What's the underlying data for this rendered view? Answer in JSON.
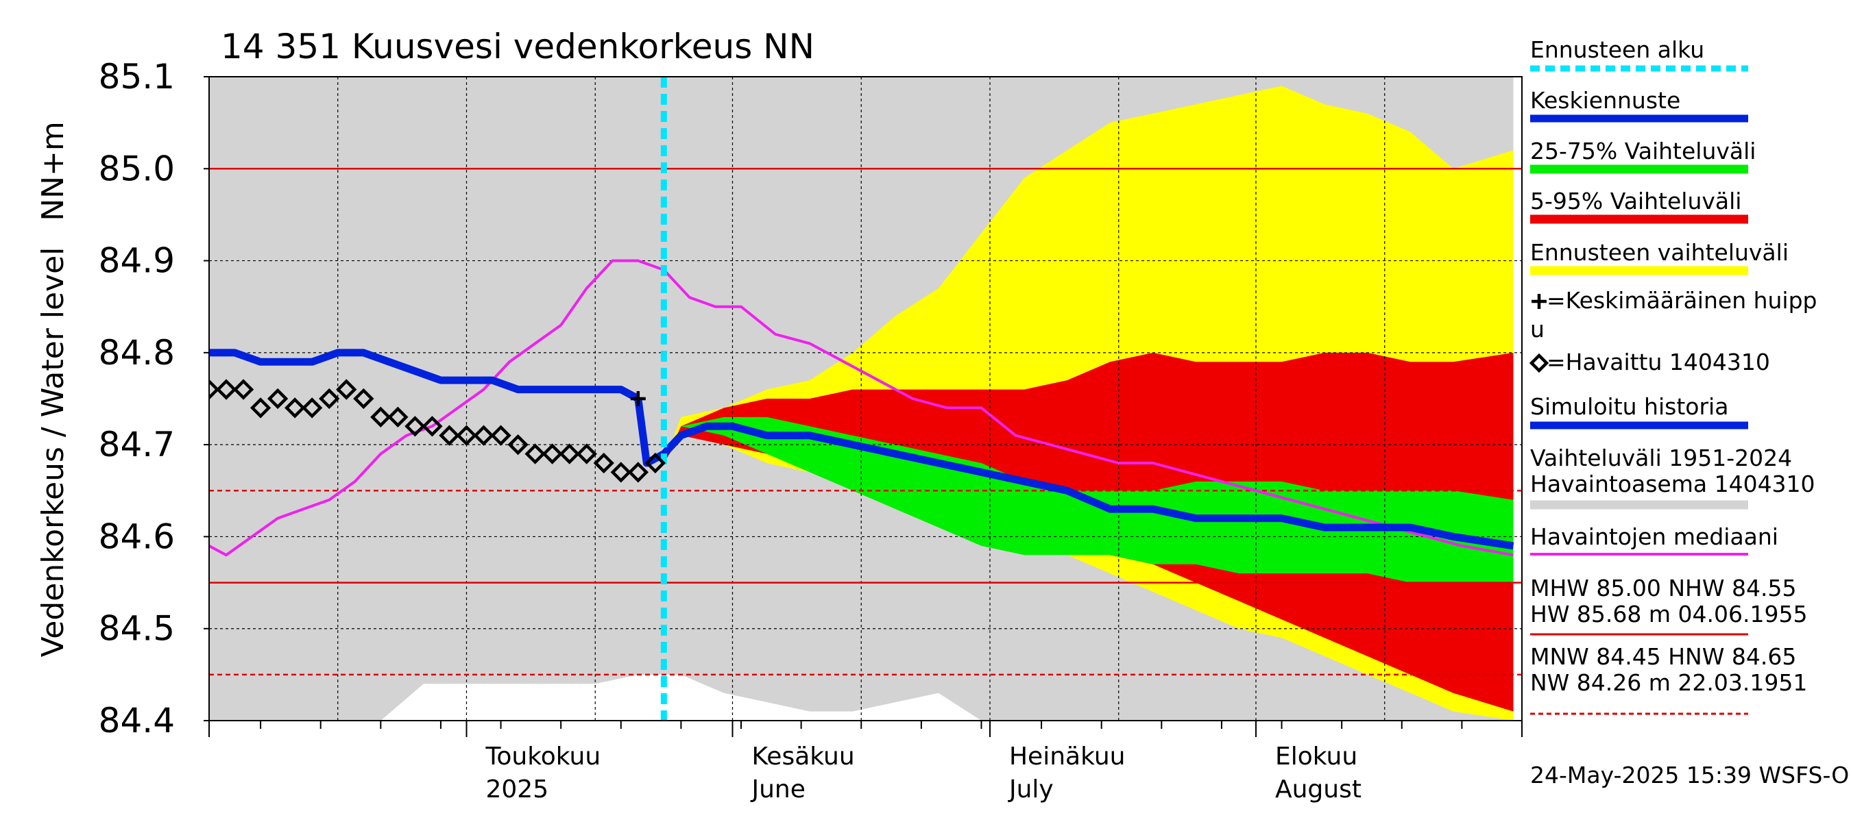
{
  "chart_data": {
    "type": "line",
    "title": "14 351 Kuusvesi vedenkorkeus NN",
    "ylabel": "Vedenkorkeus / Water level",
    "yunit": "NN+m",
    "ylim": [
      84.4,
      85.1
    ],
    "yticks": [
      "84.4",
      "84.5",
      "84.6",
      "84.7",
      "84.8",
      "84.9",
      "85.0",
      "85.1"
    ],
    "xlim": [
      "2025-04-01",
      "2025-08-31"
    ],
    "grid": true,
    "legend_position": "right",
    "month_labels": [
      {
        "date": "2025-05-01",
        "line1": "Toukokuu",
        "line2": "2025"
      },
      {
        "date": "2025-06-01",
        "line1": "Kesäkuu",
        "line2": "June"
      },
      {
        "date": "2025-07-01",
        "line1": "Heinäkuu",
        "line2": "July"
      },
      {
        "date": "2025-08-01",
        "line1": "Elokuu",
        "line2": "August"
      }
    ],
    "forecast_start": "2025-05-24",
    "reference_lines": [
      {
        "name": "MHW",
        "value": 85.0,
        "style": "solid"
      },
      {
        "name": "NHW",
        "value": 84.55,
        "style": "solid"
      },
      {
        "name": "HNW",
        "value": 84.65,
        "style": "dashed"
      },
      {
        "name": "MNW",
        "value": 84.45,
        "style": "dashed"
      }
    ],
    "colors": {
      "forecast_start": "#00e5ff",
      "mean_forecast": "#0022dd",
      "band_25_75": "#00ee00",
      "band_5_95": "#ee0000",
      "forecast_range": "#ffff00",
      "history_range": "#d3d3d3",
      "median": "#ee22ee",
      "observed": "#000000",
      "ref_lines": "#dd0000"
    },
    "history_range": {
      "x": [
        "2025-04-01",
        "2025-04-06",
        "2025-04-11",
        "2025-04-16",
        "2025-04-21",
        "2025-04-26",
        "2025-05-01",
        "2025-05-06",
        "2025-05-11",
        "2025-05-16",
        "2025-05-21",
        "2025-05-26",
        "2025-05-31",
        "2025-06-05",
        "2025-06-10",
        "2025-06-15",
        "2025-06-20",
        "2025-06-25",
        "2025-06-30",
        "2025-07-05",
        "2025-07-10",
        "2025-07-15",
        "2025-07-20",
        "2025-07-25",
        "2025-07-30",
        "2025-08-04",
        "2025-08-09",
        "2025-08-14",
        "2025-08-19",
        "2025-08-24",
        "2025-08-31"
      ],
      "upper": [
        85.1,
        85.1,
        85.1,
        85.1,
        85.1,
        85.1,
        85.1,
        85.1,
        85.1,
        85.1,
        85.1,
        85.1,
        85.1,
        85.1,
        85.1,
        85.1,
        85.1,
        85.1,
        85.1,
        85.1,
        85.1,
        85.1,
        85.1,
        85.1,
        85.1,
        85.1,
        85.1,
        85.1,
        85.1,
        85.1,
        85.1
      ],
      "lower": [
        84.4,
        84.4,
        84.4,
        84.4,
        84.4,
        84.44,
        84.44,
        84.44,
        84.44,
        84.44,
        84.45,
        84.45,
        84.43,
        84.42,
        84.41,
        84.41,
        84.42,
        84.43,
        84.4,
        84.4,
        84.4,
        84.4,
        84.4,
        84.4,
        84.4,
        84.4,
        84.4,
        84.4,
        84.4,
        84.4,
        84.4
      ]
    },
    "forecast_range": {
      "x": [
        "2025-05-24",
        "2025-05-26",
        "2025-05-31",
        "2025-06-05",
        "2025-06-10",
        "2025-06-15",
        "2025-06-20",
        "2025-06-25",
        "2025-06-30",
        "2025-07-05",
        "2025-07-10",
        "2025-07-15",
        "2025-07-20",
        "2025-07-25",
        "2025-07-30",
        "2025-08-04",
        "2025-08-09",
        "2025-08-14",
        "2025-08-19",
        "2025-08-24",
        "2025-08-31"
      ],
      "upper": [
        84.68,
        84.73,
        84.74,
        84.76,
        84.77,
        84.8,
        84.84,
        84.87,
        84.93,
        84.99,
        85.02,
        85.05,
        85.06,
        85.07,
        85.08,
        85.09,
        85.07,
        85.06,
        85.04,
        85.0,
        85.02
      ],
      "lower": [
        84.68,
        84.71,
        84.7,
        84.68,
        84.67,
        84.66,
        84.65,
        84.63,
        84.61,
        84.59,
        84.58,
        84.56,
        84.54,
        84.52,
        84.5,
        84.49,
        84.47,
        84.45,
        84.43,
        84.41,
        84.4
      ]
    },
    "band_5_95": {
      "x": [
        "2025-05-24",
        "2025-05-26",
        "2025-05-31",
        "2025-06-05",
        "2025-06-10",
        "2025-06-15",
        "2025-06-20",
        "2025-06-25",
        "2025-06-30",
        "2025-07-05",
        "2025-07-10",
        "2025-07-15",
        "2025-07-20",
        "2025-07-25",
        "2025-07-30",
        "2025-08-04",
        "2025-08-09",
        "2025-08-14",
        "2025-08-19",
        "2025-08-24",
        "2025-08-31"
      ],
      "upper": [
        84.68,
        84.72,
        84.74,
        84.75,
        84.75,
        84.76,
        84.76,
        84.76,
        84.76,
        84.76,
        84.77,
        84.79,
        84.8,
        84.79,
        84.79,
        84.79,
        84.8,
        84.8,
        84.79,
        84.79,
        84.8
      ],
      "lower": [
        84.68,
        84.71,
        84.7,
        84.69,
        84.68,
        84.67,
        84.66,
        84.64,
        84.62,
        84.61,
        84.6,
        84.58,
        84.57,
        84.55,
        84.53,
        84.51,
        84.49,
        84.47,
        84.45,
        84.43,
        84.41
      ]
    },
    "band_25_75": {
      "x": [
        "2025-05-24",
        "2025-05-26",
        "2025-05-31",
        "2025-06-05",
        "2025-06-10",
        "2025-06-15",
        "2025-06-20",
        "2025-06-25",
        "2025-06-30",
        "2025-07-05",
        "2025-07-10",
        "2025-07-15",
        "2025-07-20",
        "2025-07-25",
        "2025-07-30",
        "2025-08-04",
        "2025-08-09",
        "2025-08-14",
        "2025-08-19",
        "2025-08-24",
        "2025-08-31"
      ],
      "upper": [
        84.68,
        84.72,
        84.73,
        84.73,
        84.72,
        84.71,
        84.7,
        84.69,
        84.68,
        84.66,
        84.65,
        84.65,
        84.65,
        84.66,
        84.66,
        84.66,
        84.65,
        84.65,
        84.65,
        84.65,
        84.64
      ],
      "lower": [
        84.68,
        84.72,
        84.71,
        84.69,
        84.67,
        84.65,
        84.63,
        84.61,
        84.59,
        84.58,
        84.58,
        84.58,
        84.57,
        84.57,
        84.56,
        84.56,
        84.56,
        84.56,
        84.55,
        84.55,
        84.55
      ]
    },
    "series": [
      {
        "name": "Simuloitu historia",
        "x": [
          "2025-04-01",
          "2025-04-04",
          "2025-04-07",
          "2025-04-10",
          "2025-04-13",
          "2025-04-16",
          "2025-04-19",
          "2025-04-22",
          "2025-04-25",
          "2025-04-28",
          "2025-05-01",
          "2025-05-04",
          "2025-05-07",
          "2025-05-10",
          "2025-05-13",
          "2025-05-16",
          "2025-05-19",
          "2025-05-21"
        ],
        "y": [
          84.8,
          84.8,
          84.79,
          84.79,
          84.79,
          84.8,
          84.8,
          84.79,
          84.78,
          84.77,
          84.77,
          84.77,
          84.76,
          84.76,
          84.76,
          84.76,
          84.76,
          84.75
        ]
      },
      {
        "name": "Keskiennuste",
        "x": [
          "2025-05-21",
          "2025-05-22",
          "2025-05-24",
          "2025-05-26",
          "2025-05-29",
          "2025-06-01",
          "2025-06-05",
          "2025-06-10",
          "2025-06-15",
          "2025-06-20",
          "2025-06-25",
          "2025-06-30",
          "2025-07-05",
          "2025-07-10",
          "2025-07-15",
          "2025-07-20",
          "2025-07-25",
          "2025-07-30",
          "2025-08-04",
          "2025-08-09",
          "2025-08-14",
          "2025-08-19",
          "2025-08-24",
          "2025-08-31"
        ],
        "y": [
          84.75,
          84.68,
          84.69,
          84.71,
          84.72,
          84.72,
          84.71,
          84.71,
          84.7,
          84.69,
          84.68,
          84.67,
          84.66,
          84.65,
          84.63,
          84.63,
          84.62,
          84.62,
          84.62,
          84.61,
          84.61,
          84.61,
          84.6,
          84.59
        ]
      },
      {
        "name": "Havaintojen mediaani",
        "x": [
          "2025-04-01",
          "2025-04-03",
          "2025-04-06",
          "2025-04-09",
          "2025-04-12",
          "2025-04-15",
          "2025-04-18",
          "2025-04-21",
          "2025-04-24",
          "2025-04-27",
          "2025-04-30",
          "2025-05-03",
          "2025-05-06",
          "2025-05-09",
          "2025-05-12",
          "2025-05-15",
          "2025-05-18",
          "2025-05-21",
          "2025-05-24",
          "2025-05-27",
          "2025-05-30",
          "2025-06-02",
          "2025-06-06",
          "2025-06-10",
          "2025-06-14",
          "2025-06-18",
          "2025-06-22",
          "2025-06-26",
          "2025-06-30",
          "2025-07-04",
          "2025-07-08",
          "2025-07-12",
          "2025-07-16",
          "2025-07-20",
          "2025-07-24",
          "2025-07-28",
          "2025-08-01",
          "2025-08-05",
          "2025-08-09",
          "2025-08-13",
          "2025-08-17",
          "2025-08-21",
          "2025-08-25",
          "2025-08-31"
        ],
        "y": [
          84.59,
          84.58,
          84.6,
          84.62,
          84.63,
          84.64,
          84.66,
          84.69,
          84.71,
          84.72,
          84.74,
          84.76,
          84.79,
          84.81,
          84.83,
          84.87,
          84.9,
          84.9,
          84.89,
          84.86,
          84.85,
          84.85,
          84.82,
          84.81,
          84.79,
          84.77,
          84.75,
          84.74,
          84.74,
          84.71,
          84.7,
          84.69,
          84.68,
          84.68,
          84.67,
          84.66,
          84.65,
          84.64,
          84.63,
          84.62,
          84.61,
          84.6,
          84.59,
          84.58
        ]
      },
      {
        "name": "Havaittu 1404310",
        "x": [
          "2025-04-01",
          "2025-04-03",
          "2025-04-05",
          "2025-04-07",
          "2025-04-09",
          "2025-04-11",
          "2025-04-13",
          "2025-04-15",
          "2025-04-17",
          "2025-04-19",
          "2025-04-21",
          "2025-04-23",
          "2025-04-25",
          "2025-04-27",
          "2025-04-29",
          "2025-05-01",
          "2025-05-03",
          "2025-05-05",
          "2025-05-07",
          "2025-05-09",
          "2025-05-11",
          "2025-05-13",
          "2025-05-15",
          "2025-05-17",
          "2025-05-19",
          "2025-05-21",
          "2025-05-23"
        ],
        "y": [
          84.76,
          84.76,
          84.76,
          84.74,
          84.75,
          84.74,
          84.74,
          84.75,
          84.76,
          84.75,
          84.73,
          84.73,
          84.72,
          84.72,
          84.71,
          84.71,
          84.71,
          84.71,
          84.7,
          84.69,
          84.69,
          84.69,
          84.69,
          84.68,
          84.67,
          84.67,
          84.68
        ]
      }
    ],
    "mean_peak": {
      "x": "2025-05-21",
      "y": 84.75
    }
  },
  "legend": [
    {
      "key": "forecast_start",
      "label": "Ennusteen alku",
      "style": "dashed"
    },
    {
      "key": "mean_forecast",
      "label": "Keskiennuste",
      "style": "solid"
    },
    {
      "key": "band_25_75",
      "label": "25-75% Vaihteluväli",
      "style": "solid"
    },
    {
      "key": "band_5_95",
      "label": "5-95% Vaihteluväli",
      "style": "solid"
    },
    {
      "key": "forecast_range",
      "label": "Ennusteen vaihteluväli",
      "style": "solid"
    },
    {
      "key": "peak",
      "label": "=Keskimääräinen huipp",
      "label2": "u",
      "style": "cross"
    },
    {
      "key": "observed",
      "label": "=Havaittu 1404310",
      "style": "diamond"
    },
    {
      "key": "sim_history",
      "label": "Simuloitu historia",
      "style": "solid"
    },
    {
      "key": "history_range",
      "label": "Vaihteluväli 1951-2024",
      "label2": " Havaintoasema 1404310",
      "style": "solid"
    },
    {
      "key": "median",
      "label": "Havaintojen mediaani",
      "style": "solid"
    },
    {
      "key": "stats1",
      "label": "MHW  85.00 NHW  84.55",
      "label2": "HW  85.68 m 04.06.1955",
      "style": "solid"
    },
    {
      "key": "stats2",
      "label": "MNW  84.45 HNW  84.65",
      "label2": "NW  84.26 m 22.03.1951",
      "style": "dashed"
    }
  ],
  "footer": "24-May-2025 15:39 WSFS-O"
}
